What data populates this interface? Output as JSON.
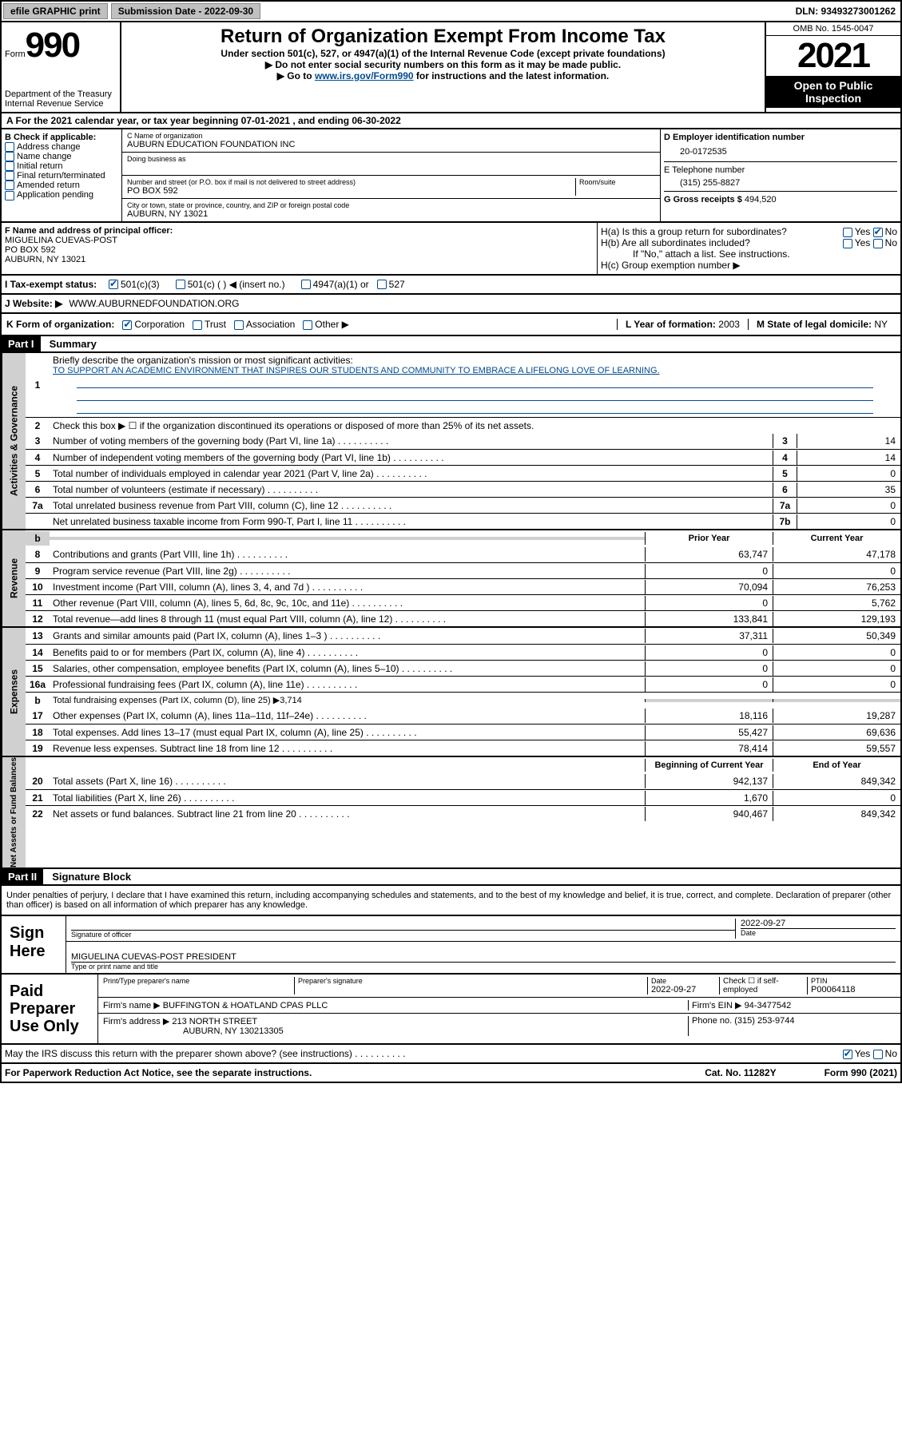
{
  "topbar": {
    "efile": "efile GRAPHIC print",
    "submission_label": "Submission Date - 2022-09-30",
    "dln": "DLN: 93493273001262"
  },
  "header": {
    "form_prefix": "Form",
    "form_num": "990",
    "dept": "Department of the Treasury Internal Revenue Service",
    "title": "Return of Organization Exempt From Income Tax",
    "sub1": "Under section 501(c), 527, or 4947(a)(1) of the Internal Revenue Code (except private foundations)",
    "sub2": "▶ Do not enter social security numbers on this form as it may be made public.",
    "sub3_pre": "▶ Go to ",
    "sub3_link": "www.irs.gov/Form990",
    "sub3_post": " for instructions and the latest information.",
    "omb": "OMB No. 1545-0047",
    "year": "2021",
    "open": "Open to Public Inspection"
  },
  "rowA": "A For the 2021 calendar year, or tax year beginning 07-01-2021   , and ending 06-30-2022",
  "colB": {
    "label": "B Check if applicable:",
    "items": [
      "Address change",
      "Name change",
      "Initial return",
      "Final return/terminated",
      "Amended return",
      "Application pending"
    ]
  },
  "colC": {
    "name_label": "C Name of organization",
    "name": "AUBURN EDUCATION FOUNDATION INC",
    "dba_label": "Doing business as",
    "street_label": "Number and street (or P.O. box if mail is not delivered to street address)",
    "room_label": "Room/suite",
    "street": "PO BOX 592",
    "city_label": "City or town, state or province, country, and ZIP or foreign postal code",
    "city": "AUBURN, NY  13021"
  },
  "colD": {
    "ein_label": "D Employer identification number",
    "ein": "20-0172535",
    "phone_label": "E Telephone number",
    "phone": "(315) 255-8827",
    "gross_label": "G Gross receipts $ ",
    "gross": "494,520"
  },
  "rowF": {
    "f_label": "F Name and address of principal officer:",
    "f_name": "MIGUELINA CUEVAS-POST",
    "f_addr1": "PO BOX 592",
    "f_addr2": "AUBURN, NY  13021",
    "ha": "H(a)  Is this a group return for subordinates?",
    "hb": "H(b)  Are all subordinates included?",
    "hb_note": "If \"No,\" attach a list. See instructions.",
    "hc": "H(c)  Group exemption number ▶"
  },
  "rowI": {
    "i_label": "I   Tax-exempt status:",
    "opts": [
      "501(c)(3)",
      "501(c) (  ) ◀ (insert no.)",
      "4947(a)(1) or",
      "527"
    ],
    "j_label": "J   Website: ▶",
    "j_val": "WWW.AUBURNEDFOUNDATION.ORG"
  },
  "rowK": {
    "k_label": "K Form of organization:",
    "k_opts": [
      "Corporation",
      "Trust",
      "Association",
      "Other ▶"
    ],
    "l_label": "L Year of formation: ",
    "l_val": "2003",
    "m_label": "M State of legal domicile: ",
    "m_val": "NY"
  },
  "part1": {
    "hdr": "Part I",
    "title": "Summary",
    "side1": "Activities & Governance",
    "line1_label": "Briefly describe the organization's mission or most significant activities:",
    "line1_text": "TO SUPPORT AN ACADEMIC ENVIRONMENT THAT INSPIRES OUR STUDENTS AND COMMUNITY TO EMBRACE A LIFELONG LOVE OF LEARNING.",
    "line2": "Check this box ▶ ☐  if the organization discontinued its operations or disposed of more than 25% of its net assets.",
    "lines_gov": [
      {
        "n": "3",
        "t": "Number of voting members of the governing body (Part VI, line 1a)",
        "b": "3",
        "v": "14"
      },
      {
        "n": "4",
        "t": "Number of independent voting members of the governing body (Part VI, line 1b)",
        "b": "4",
        "v": "14"
      },
      {
        "n": "5",
        "t": "Total number of individuals employed in calendar year 2021 (Part V, line 2a)",
        "b": "5",
        "v": "0"
      },
      {
        "n": "6",
        "t": "Total number of volunteers (estimate if necessary)",
        "b": "6",
        "v": "35"
      },
      {
        "n": "7a",
        "t": "Total unrelated business revenue from Part VIII, column (C), line 12",
        "b": "7a",
        "v": "0"
      },
      {
        "n": "",
        "t": "Net unrelated business taxable income from Form 990-T, Part I, line 11",
        "b": "7b",
        "v": "0"
      }
    ],
    "side2": "Revenue",
    "col_prior": "Prior Year",
    "col_curr": "Current Year",
    "lines_rev": [
      {
        "n": "8",
        "t": "Contributions and grants (Part VIII, line 1h)",
        "p": "63,747",
        "c": "47,178"
      },
      {
        "n": "9",
        "t": "Program service revenue (Part VIII, line 2g)",
        "p": "0",
        "c": "0"
      },
      {
        "n": "10",
        "t": "Investment income (Part VIII, column (A), lines 3, 4, and 7d )",
        "p": "70,094",
        "c": "76,253"
      },
      {
        "n": "11",
        "t": "Other revenue (Part VIII, column (A), lines 5, 6d, 8c, 9c, 10c, and 11e)",
        "p": "0",
        "c": "5,762"
      },
      {
        "n": "12",
        "t": "Total revenue—add lines 8 through 11 (must equal Part VIII, column (A), line 12)",
        "p": "133,841",
        "c": "129,193"
      }
    ],
    "side3": "Expenses",
    "lines_exp": [
      {
        "n": "13",
        "t": "Grants and similar amounts paid (Part IX, column (A), lines 1–3 )",
        "p": "37,311",
        "c": "50,349"
      },
      {
        "n": "14",
        "t": "Benefits paid to or for members (Part IX, column (A), line 4)",
        "p": "0",
        "c": "0"
      },
      {
        "n": "15",
        "t": "Salaries, other compensation, employee benefits (Part IX, column (A), lines 5–10)",
        "p": "0",
        "c": "0"
      },
      {
        "n": "16a",
        "t": "Professional fundraising fees (Part IX, column (A), line 11e)",
        "p": "0",
        "c": "0"
      }
    ],
    "line16b": "Total fundraising expenses (Part IX, column (D), line 25) ▶3,714",
    "lines_exp2": [
      {
        "n": "17",
        "t": "Other expenses (Part IX, column (A), lines 11a–11d, 11f–24e)",
        "p": "18,116",
        "c": "19,287"
      },
      {
        "n": "18",
        "t": "Total expenses. Add lines 13–17 (must equal Part IX, column (A), line 25)",
        "p": "55,427",
        "c": "69,636"
      },
      {
        "n": "19",
        "t": "Revenue less expenses. Subtract line 18 from line 12",
        "p": "78,414",
        "c": "59,557"
      }
    ],
    "side4": "Net Assets or Fund Balances",
    "col_beg": "Beginning of Current Year",
    "col_end": "End of Year",
    "lines_net": [
      {
        "n": "20",
        "t": "Total assets (Part X, line 16)",
        "p": "942,137",
        "c": "849,342"
      },
      {
        "n": "21",
        "t": "Total liabilities (Part X, line 26)",
        "p": "1,670",
        "c": "0"
      },
      {
        "n": "22",
        "t": "Net assets or fund balances. Subtract line 21 from line 20",
        "p": "940,467",
        "c": "849,342"
      }
    ]
  },
  "part2": {
    "hdr": "Part II",
    "title": "Signature Block",
    "decl": "Under penalties of perjury, I declare that I have examined this return, including accompanying schedules and statements, and to the best of my knowledge and belief, it is true, correct, and complete. Declaration of preparer (other than officer) is based on all information of which preparer has any knowledge.",
    "sign_here": "Sign Here",
    "sig_officer": "Signature of officer",
    "sig_date": "2022-09-27",
    "date_label": "Date",
    "officer_name": "MIGUELINA CUEVAS-POST PRESIDENT",
    "type_label": "Type or print name and title",
    "paid": "Paid Preparer Use Only",
    "prep_name_label": "Print/Type preparer's name",
    "prep_sig_label": "Preparer's signature",
    "prep_date_label": "Date",
    "prep_date": "2022-09-27",
    "check_label": "Check ☐ if self-employed",
    "ptin_label": "PTIN",
    "ptin": "P00064118",
    "firm_name_label": "Firm's name     ▶",
    "firm_name": "BUFFINGTON & HOATLAND CPAS PLLC",
    "firm_ein_label": "Firm's EIN ▶",
    "firm_ein": "94-3477542",
    "firm_addr_label": "Firm's address ▶",
    "firm_addr1": "213 NORTH STREET",
    "firm_addr2": "AUBURN, NY  130213305",
    "firm_phone_label": "Phone no. ",
    "firm_phone": "(315) 253-9744",
    "may_irs": "May the IRS discuss this return with the preparer shown above? (see instructions)",
    "yes": "Yes",
    "no": "No"
  },
  "footer": {
    "pra": "For Paperwork Reduction Act Notice, see the separate instructions.",
    "cat": "Cat. No. 11282Y",
    "form": "Form 990 (2021)"
  }
}
